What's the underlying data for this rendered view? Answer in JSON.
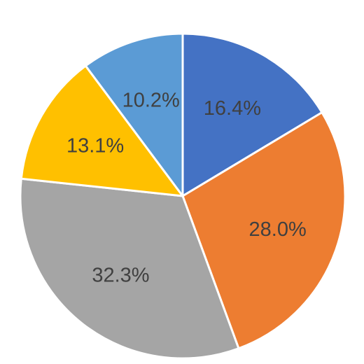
{
  "chart_data": {
    "type": "pie",
    "title": "",
    "start_angle_deg": 0,
    "direction": "clockwise",
    "slices": [
      {
        "value": 16.4,
        "label": "16.4%",
        "color": "#4472C4"
      },
      {
        "value": 28.0,
        "label": "28.0%",
        "color": "#ED7D31"
      },
      {
        "value": 32.3,
        "label": "32.3%",
        "color": "#A5A5A5"
      },
      {
        "value": 13.1,
        "label": "13.1%",
        "color": "#FFC000"
      },
      {
        "value": 10.2,
        "label": "10.2%",
        "color": "#5B9BD5"
      }
    ],
    "legend": "none",
    "data_labels": "inside"
  }
}
